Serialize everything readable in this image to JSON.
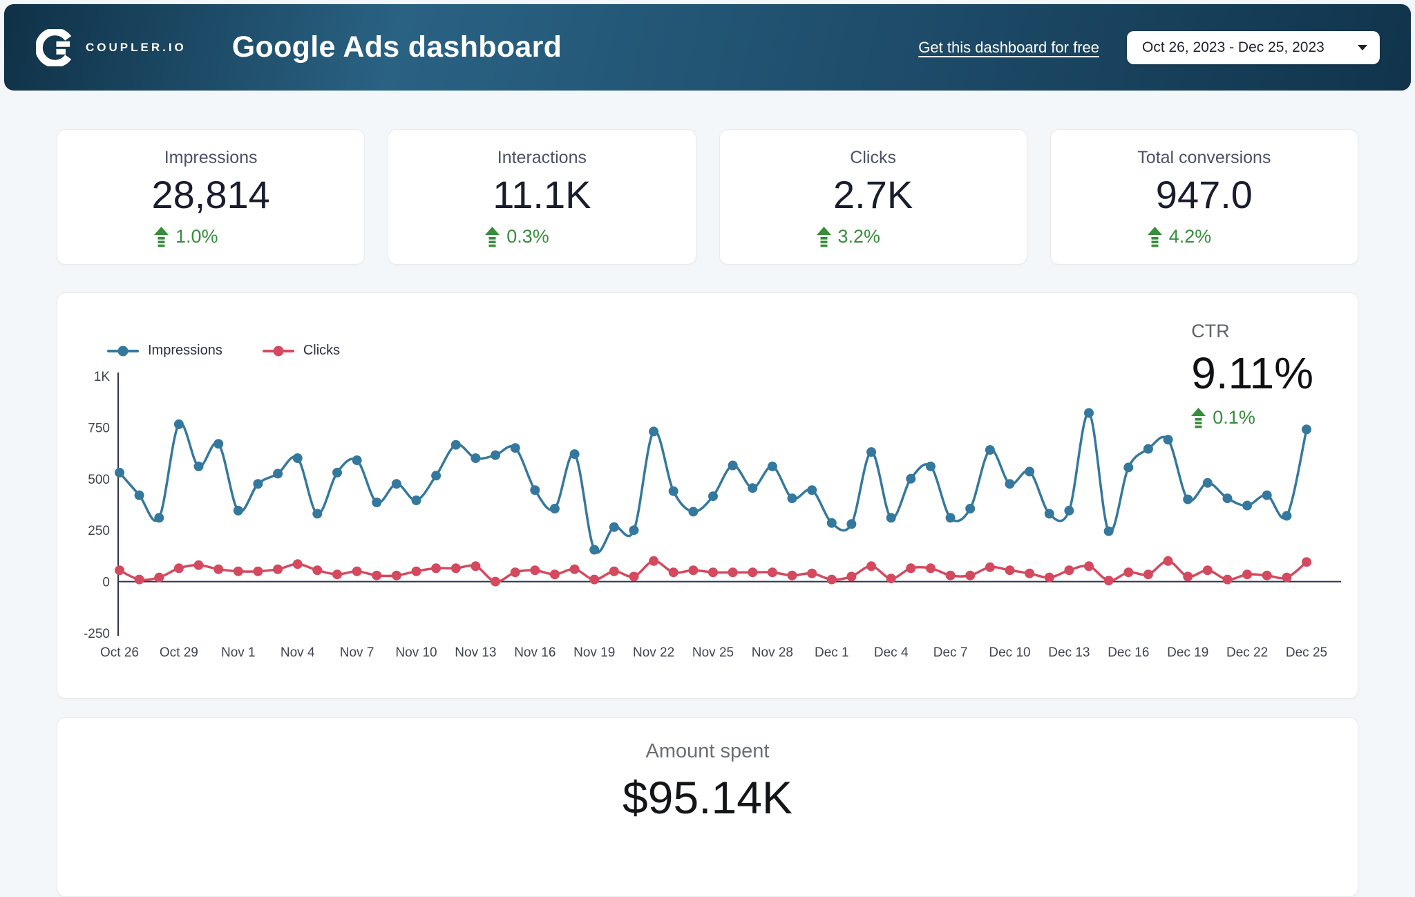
{
  "header": {
    "brand": "COUPLER.IO",
    "title": "Google Ads dashboard",
    "link": "Get this dashboard for free",
    "date_range": "Oct 26, 2023 - Dec 25, 2023"
  },
  "colors": {
    "impressions_line": "#35789e",
    "clicks_line": "#d5495e",
    "positive_delta": "#388e3c",
    "header_gradient_start": "#0f3147",
    "header_gradient_mid": "#2a6283",
    "page_background": "#f4f7f9"
  },
  "kpis": [
    {
      "label": "Impressions",
      "value": "28,814",
      "delta": "1.0%"
    },
    {
      "label": "Interactions",
      "value": "11.1K",
      "delta": "0.3%"
    },
    {
      "label": "Clicks",
      "value": "2.7K",
      "delta": "3.2%"
    },
    {
      "label": "Total conversions",
      "value": "947.0",
      "delta": "4.2%"
    }
  ],
  "ctr": {
    "label": "CTR",
    "value": "9.11%",
    "delta": "0.1%"
  },
  "amount_spent": {
    "label": "Amount spent",
    "value": "$95.14K"
  },
  "chart_data": {
    "type": "line",
    "title": "",
    "xlabel": "",
    "ylabel": "",
    "ylim": [
      -250,
      1000
    ],
    "yticks": [
      1000,
      750,
      500,
      250,
      0,
      -250
    ],
    "ytick_labels": [
      "1K",
      "750",
      "500",
      "250",
      "0",
      "-250"
    ],
    "xtick_every": 3,
    "grid": false,
    "legend_position": "top-left",
    "x": [
      "Oct 26",
      "Oct 27",
      "Oct 28",
      "Oct 29",
      "Oct 30",
      "Oct 31",
      "Nov 1",
      "Nov 2",
      "Nov 3",
      "Nov 4",
      "Nov 5",
      "Nov 6",
      "Nov 7",
      "Nov 8",
      "Nov 9",
      "Nov 10",
      "Nov 11",
      "Nov 12",
      "Nov 13",
      "Nov 14",
      "Nov 15",
      "Nov 16",
      "Nov 17",
      "Nov 18",
      "Nov 19",
      "Nov 20",
      "Nov 21",
      "Nov 22",
      "Nov 23",
      "Nov 24",
      "Nov 25",
      "Nov 26",
      "Nov 27",
      "Nov 28",
      "Nov 29",
      "Nov 30",
      "Dec 1",
      "Dec 2",
      "Dec 3",
      "Dec 4",
      "Dec 5",
      "Dec 6",
      "Dec 7",
      "Dec 8",
      "Dec 9",
      "Dec 10",
      "Dec 11",
      "Dec 12",
      "Dec 13",
      "Dec 14",
      "Dec 15",
      "Dec 16",
      "Dec 17",
      "Dec 18",
      "Dec 19",
      "Dec 20",
      "Dec 21",
      "Dec 22",
      "Dec 23",
      "Dec 24",
      "Dec 25"
    ],
    "series": [
      {
        "name": "Impressions",
        "color": "#35789e",
        "values": [
          530,
          420,
          310,
          765,
          560,
          670,
          345,
          475,
          525,
          600,
          330,
          530,
          590,
          385,
          475,
          395,
          515,
          665,
          600,
          615,
          650,
          445,
          355,
          620,
          155,
          265,
          250,
          730,
          440,
          340,
          415,
          565,
          455,
          560,
          405,
          445,
          285,
          280,
          630,
          310,
          500,
          560,
          310,
          355,
          640,
          475,
          535,
          330,
          345,
          820,
          245,
          555,
          645,
          690,
          400,
          480,
          405,
          370,
          420,
          320,
          740
        ]
      },
      {
        "name": "Clicks",
        "color": "#d5495e",
        "values": [
          55,
          10,
          20,
          65,
          80,
          60,
          50,
          50,
          60,
          85,
          55,
          35,
          50,
          30,
          30,
          50,
          65,
          65,
          75,
          0,
          45,
          55,
          35,
          60,
          10,
          50,
          25,
          100,
          45,
          55,
          45,
          45,
          45,
          45,
          30,
          40,
          10,
          25,
          75,
          15,
          65,
          65,
          30,
          30,
          70,
          55,
          40,
          20,
          55,
          75,
          5,
          45,
          35,
          100,
          25,
          55,
          10,
          35,
          30,
          20,
          95
        ]
      }
    ]
  }
}
